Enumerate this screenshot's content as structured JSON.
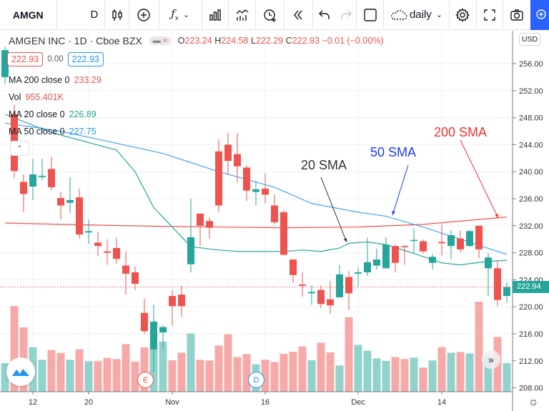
{
  "toolbar": {
    "symbol": "AMGN",
    "interval": "D",
    "template_label": "daily",
    "icons": [
      "candles-icon",
      "add-compare-icon",
      "indicators-fx-icon",
      "chevron-down-icon",
      "bar-chart-icon",
      "financials-icon",
      "alert-icon",
      "replay-icon",
      "undo-icon",
      "redo-icon",
      "layout-square-icon",
      "cloud-icon",
      "chevron-down-icon",
      "gear-icon",
      "fullscreen-icon",
      "camera-icon",
      "lightbulb-icon"
    ],
    "accent": "#2962ff"
  },
  "legend": {
    "title": "AMGEN INC · 1D · Cboe BZX",
    "ohlc": {
      "o_label": "O",
      "o": "223.24",
      "h_label": "H",
      "h": "224.58",
      "l_label": "L",
      "l": "222.29",
      "c_label": "C",
      "c": "222.93",
      "change": "−0.01 (−0.00%)"
    },
    "bid": "222.93",
    "spread": "0.00",
    "ask": "222.93",
    "ma200": {
      "label": "MA 200 close 0",
      "value": "233.29"
    },
    "vol": {
      "label": "Vol",
      "value": "955.401K"
    },
    "ma20": {
      "label": "MA 20 close 0",
      "value": "226.89"
    },
    "ma50": {
      "label": "MA 50 close 0",
      "value": "227.75"
    }
  },
  "price_axis": {
    "currency": "USD",
    "ticks": [
      "256.00",
      "252.00",
      "248.00",
      "244.00",
      "240.00",
      "236.00",
      "232.00",
      "228.00",
      "224.00",
      "220.00",
      "216.00",
      "212.00",
      "208.00"
    ],
    "last_price": "222.94"
  },
  "annotations": [
    {
      "text": "20 SMA",
      "color": "#333333"
    },
    {
      "text": "50 SMA",
      "color": "#1a3cff"
    },
    {
      "text": "200 SMA",
      "color": "#f23030"
    }
  ],
  "markers": [
    {
      "text": "E",
      "date": "2020-10-28",
      "color": "#f05050"
    },
    {
      "text": "D",
      "date": "2020-11-13",
      "color": "#2196f3"
    }
  ],
  "colors": {
    "up": "#26a69a",
    "down": "#ef5350",
    "vol_up": "#92d2cc",
    "vol_down": "#f7a9a7",
    "ma20": "#26a69a",
    "ma50": "#42a5f5",
    "ma200": "#ef5350"
  },
  "chart_data": {
    "type": "candlestick",
    "title": "AMGEN INC · 1D · Cboe BZX",
    "x_tick_labels": [
      {
        "label": "12",
        "date": "2020-10-12"
      },
      {
        "label": "20",
        "date": "2020-10-20"
      },
      {
        "label": "Nov",
        "date": "2020-11-02"
      },
      {
        "label": "16",
        "date": "2020-11-16"
      },
      {
        "label": "Dec",
        "date": "2020-12-01"
      },
      {
        "label": "14",
        "date": "2020-12-14"
      }
    ],
    "ylim": [
      207.5,
      258
    ],
    "grid": true,
    "columns": [
      "date",
      "open",
      "high",
      "low",
      "close",
      "volume_k"
    ],
    "candles": [
      [
        "2020-10-07",
        254.0,
        258.5,
        253.0,
        258.0,
        955
      ],
      [
        "2020-10-08",
        248.5,
        250.0,
        239.1,
        240.1,
        2866
      ],
      [
        "2020-10-09",
        238.5,
        239.6,
        234.0,
        236.7,
        2149
      ],
      [
        "2020-10-12",
        237.8,
        241.9,
        235.8,
        239.6,
        1489
      ],
      [
        "2020-10-13",
        239.2,
        241.9,
        238.8,
        239.4,
        1067
      ],
      [
        "2020-10-14",
        240.4,
        242.2,
        237.2,
        237.7,
        1393
      ],
      [
        "2020-10-15",
        236.1,
        237.0,
        232.9,
        235.0,
        1297
      ],
      [
        "2020-10-16",
        235.4,
        239.2,
        233.9,
        235.8,
        1067
      ],
      [
        "2020-10-19",
        236.2,
        237.5,
        230.1,
        230.7,
        1417
      ],
      [
        "2020-10-20",
        231.0,
        232.9,
        229.3,
        231.2,
        1019
      ],
      [
        "2020-10-21",
        229.5,
        231.1,
        227.5,
        229.0,
        1019
      ],
      [
        "2020-10-22",
        228.2,
        230.0,
        226.2,
        228.0,
        1130
      ],
      [
        "2020-10-23",
        228.7,
        230.2,
        226.4,
        227.1,
        1091
      ],
      [
        "2020-10-26",
        226.1,
        228.2,
        221.8,
        224.9,
        1592
      ],
      [
        "2020-10-27",
        225.1,
        226.0,
        222.5,
        223.4,
        1003
      ],
      [
        "2020-10-28",
        219.1,
        221.2,
        216.0,
        216.4,
        1481
      ],
      [
        "2020-10-29",
        213.7,
        220.3,
        210.3,
        217.8,
        1480
      ],
      [
        "2020-10-30",
        216.2,
        217.3,
        213.9,
        217.0,
        1672
      ],
      [
        "2020-11-02",
        221.6,
        222.5,
        217.2,
        220.1,
        1051
      ],
      [
        "2020-11-03",
        221.8,
        223.1,
        218.5,
        220.1,
        1305
      ],
      [
        "2020-11-04",
        226.3,
        236.0,
        225.1,
        230.3,
        1950
      ],
      [
        "2020-11-05",
        233.8,
        233.8,
        229.0,
        232.0,
        1067
      ],
      [
        "2020-11-06",
        232.7,
        233.2,
        230.1,
        231.7,
        1043
      ],
      [
        "2020-11-09",
        243.0,
        244.8,
        234.0,
        235.0,
        1544
      ],
      [
        "2020-11-10",
        244.0,
        245.8,
        239.5,
        241.6,
        1918
      ],
      [
        "2020-11-11",
        242.6,
        245.7,
        238.4,
        240.8,
        1162
      ],
      [
        "2020-11-12",
        240.6,
        241.0,
        235.7,
        237.2,
        1258
      ],
      [
        "2020-11-13",
        237.0,
        238.6,
        235.0,
        237.4,
        915
      ],
      [
        "2020-11-16",
        237.5,
        239.8,
        235.3,
        236.6,
        1067
      ],
      [
        "2020-11-17",
        235.0,
        236.6,
        232.2,
        232.5,
        995
      ],
      [
        "2020-11-18",
        234.0,
        234.3,
        227.6,
        227.7,
        1266
      ],
      [
        "2020-11-19",
        227.0,
        227.0,
        223.6,
        224.7,
        1337
      ],
      [
        "2020-11-20",
        223.3,
        225.1,
        221.5,
        223.1,
        1512
      ],
      [
        "2020-11-23",
        222.0,
        223.2,
        220.3,
        222.2,
        1051
      ],
      [
        "2020-11-24",
        222.5,
        223.1,
        219.8,
        220.4,
        1640
      ],
      [
        "2020-11-25",
        221.1,
        223.8,
        219.0,
        220.2,
        1313
      ],
      [
        "2020-11-27",
        221.4,
        226.2,
        221.4,
        224.8,
        876
      ],
      [
        "2020-11-30",
        224.4,
        225.3,
        219.5,
        222.0,
        2491
      ],
      [
        "2020-12-01",
        224.9,
        225.8,
        222.8,
        225.1,
        1568
      ],
      [
        "2020-12-02",
        225.1,
        230.2,
        224.6,
        226.6,
        1369
      ],
      [
        "2020-12-03",
        226.1,
        228.6,
        225.5,
        227.0,
        1114
      ],
      [
        "2020-12-04",
        225.7,
        230.3,
        225.7,
        229.2,
        1027
      ],
      [
        "2020-12-07",
        229.0,
        229.2,
        225.1,
        226.5,
        1162
      ],
      [
        "2020-12-08",
        229.0,
        229.1,
        226.2,
        228.9,
        1091
      ],
      [
        "2020-12-09",
        229.8,
        231.6,
        228.0,
        229.9,
        1138
      ],
      [
        "2020-12-10",
        229.7,
        230.0,
        227.9,
        228.2,
        804
      ],
      [
        "2020-12-11",
        226.5,
        227.8,
        225.5,
        227.4,
        1043
      ],
      [
        "2020-12-14",
        229.6,
        232.2,
        227.6,
        229.4,
        1489
      ],
      [
        "2020-12-15",
        229.0,
        231.3,
        227.0,
        230.6,
        1305
      ],
      [
        "2020-12-16",
        230.1,
        231.3,
        228.1,
        228.5,
        1329
      ],
      [
        "2020-12-17",
        229.0,
        231.4,
        228.9,
        231.2,
        1282
      ],
      [
        "2020-12-18",
        232.0,
        232.0,
        227.2,
        228.5,
        3009
      ],
      [
        "2020-12-21",
        225.7,
        228.0,
        221.6,
        227.3,
        1186
      ],
      [
        "2020-12-22",
        225.7,
        226.7,
        220.1,
        221.0,
        1831
      ],
      [
        "2020-12-23",
        221.6,
        223.6,
        220.6,
        222.93,
        955
      ]
    ],
    "ma20": [
      [
        "2020-10-07",
        248.5
      ],
      [
        "2020-10-14",
        245.8
      ],
      [
        "2020-10-23",
        243.2
      ],
      [
        "2020-10-27",
        240.0
      ],
      [
        "2020-10-29",
        234.7
      ],
      [
        "2020-11-02",
        231.8
      ],
      [
        "2020-11-04",
        228.9
      ],
      [
        "2020-11-09",
        228.4
      ],
      [
        "2020-11-11",
        228.2
      ],
      [
        "2020-11-16",
        228.2
      ],
      [
        "2020-11-18",
        228.2
      ],
      [
        "2020-11-20",
        228.4
      ],
      [
        "2020-11-24",
        228.2
      ],
      [
        "2020-11-27",
        228.7
      ],
      [
        "2020-11-30",
        229.4
      ],
      [
        "2020-12-02",
        229.6
      ],
      [
        "2020-12-04",
        229.2
      ],
      [
        "2020-12-09",
        227.9
      ],
      [
        "2020-12-14",
        226.5
      ],
      [
        "2020-12-16",
        226.2
      ],
      [
        "2020-12-17",
        226.4
      ],
      [
        "2020-12-21",
        226.7
      ],
      [
        "2020-12-23",
        226.89
      ]
    ],
    "ma50": [
      [
        "2020-10-07",
        247.2
      ],
      [
        "2020-10-15",
        246.0
      ],
      [
        "2020-10-30",
        242.7
      ],
      [
        "2020-11-09",
        240.0
      ],
      [
        "2020-11-17",
        237.7
      ],
      [
        "2020-11-23",
        235.3
      ],
      [
        "2020-12-01",
        234.0
      ],
      [
        "2020-12-04",
        233.4
      ],
      [
        "2020-12-10",
        231.8
      ],
      [
        "2020-12-16",
        230.0
      ],
      [
        "2020-12-23",
        227.75
      ]
    ],
    "ma200": [
      [
        "2020-10-07",
        232.4
      ],
      [
        "2020-10-15",
        232.2
      ],
      [
        "2020-10-30",
        231.9
      ],
      [
        "2020-11-09",
        231.8
      ],
      [
        "2020-11-18",
        231.7
      ],
      [
        "2020-12-01",
        231.8
      ],
      [
        "2020-12-10",
        232.2
      ],
      [
        "2020-12-23",
        233.29
      ]
    ]
  }
}
